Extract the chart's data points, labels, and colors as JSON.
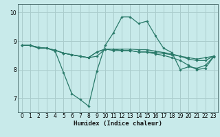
{
  "xlabel": "Humidex (Indice chaleur)",
  "bg_color": "#c8eaea",
  "line_color": "#2a7a6a",
  "grid_color": "#aacccc",
  "xlim": [
    -0.5,
    23.5
  ],
  "ylim": [
    6.5,
    10.3
  ],
  "yticks": [
    7,
    8,
    9,
    10
  ],
  "xticks": [
    0,
    1,
    2,
    3,
    4,
    5,
    6,
    7,
    8,
    9,
    10,
    11,
    12,
    13,
    14,
    15,
    16,
    17,
    18,
    19,
    20,
    21,
    22,
    23
  ],
  "lines": [
    {
      "x": [
        0,
        1,
        2,
        3,
        4,
        5,
        6,
        7,
        8,
        9,
        10,
        11,
        12,
        13,
        14,
        15,
        16,
        17,
        18,
        19,
        20,
        21,
        22,
        23
      ],
      "y": [
        8.85,
        8.85,
        8.75,
        8.75,
        8.65,
        7.9,
        7.15,
        6.95,
        6.72,
        7.95,
        8.85,
        9.3,
        9.85,
        9.85,
        9.62,
        9.7,
        9.2,
        8.75,
        8.6,
        8.0,
        8.1,
        8.05,
        8.15,
        8.45
      ]
    },
    {
      "x": [
        0,
        1,
        2,
        3,
        4,
        5,
        6,
        7,
        8,
        9,
        10,
        11,
        12,
        13,
        14,
        15,
        16,
        17,
        18,
        19,
        20,
        21,
        22,
        23
      ],
      "y": [
        8.85,
        8.85,
        8.78,
        8.75,
        8.68,
        8.58,
        8.52,
        8.47,
        8.42,
        8.62,
        8.72,
        8.72,
        8.72,
        8.72,
        8.7,
        8.7,
        8.65,
        8.6,
        8.55,
        8.47,
        8.42,
        8.37,
        8.42,
        8.47
      ]
    },
    {
      "x": [
        0,
        1,
        2,
        3,
        4,
        5,
        6,
        7,
        8,
        9,
        10,
        11,
        12,
        13,
        14,
        15,
        16,
        17,
        18,
        19,
        20,
        21,
        22,
        23
      ],
      "y": [
        8.85,
        8.85,
        8.78,
        8.75,
        8.68,
        8.58,
        8.52,
        8.47,
        8.42,
        8.47,
        8.72,
        8.67,
        8.67,
        8.67,
        8.62,
        8.62,
        8.6,
        8.57,
        8.52,
        8.47,
        8.37,
        8.32,
        8.32,
        8.47
      ]
    },
    {
      "x": [
        0,
        1,
        2,
        3,
        4,
        5,
        6,
        7,
        8,
        9,
        10,
        11,
        12,
        13,
        14,
        15,
        16,
        17,
        18,
        19,
        20,
        21,
        22,
        23
      ],
      "y": [
        8.85,
        8.85,
        8.78,
        8.75,
        8.68,
        8.58,
        8.52,
        8.47,
        8.42,
        8.62,
        8.72,
        8.72,
        8.67,
        8.67,
        8.62,
        8.62,
        8.55,
        8.5,
        8.42,
        8.32,
        8.15,
        8.0,
        8.05,
        8.45
      ]
    }
  ]
}
